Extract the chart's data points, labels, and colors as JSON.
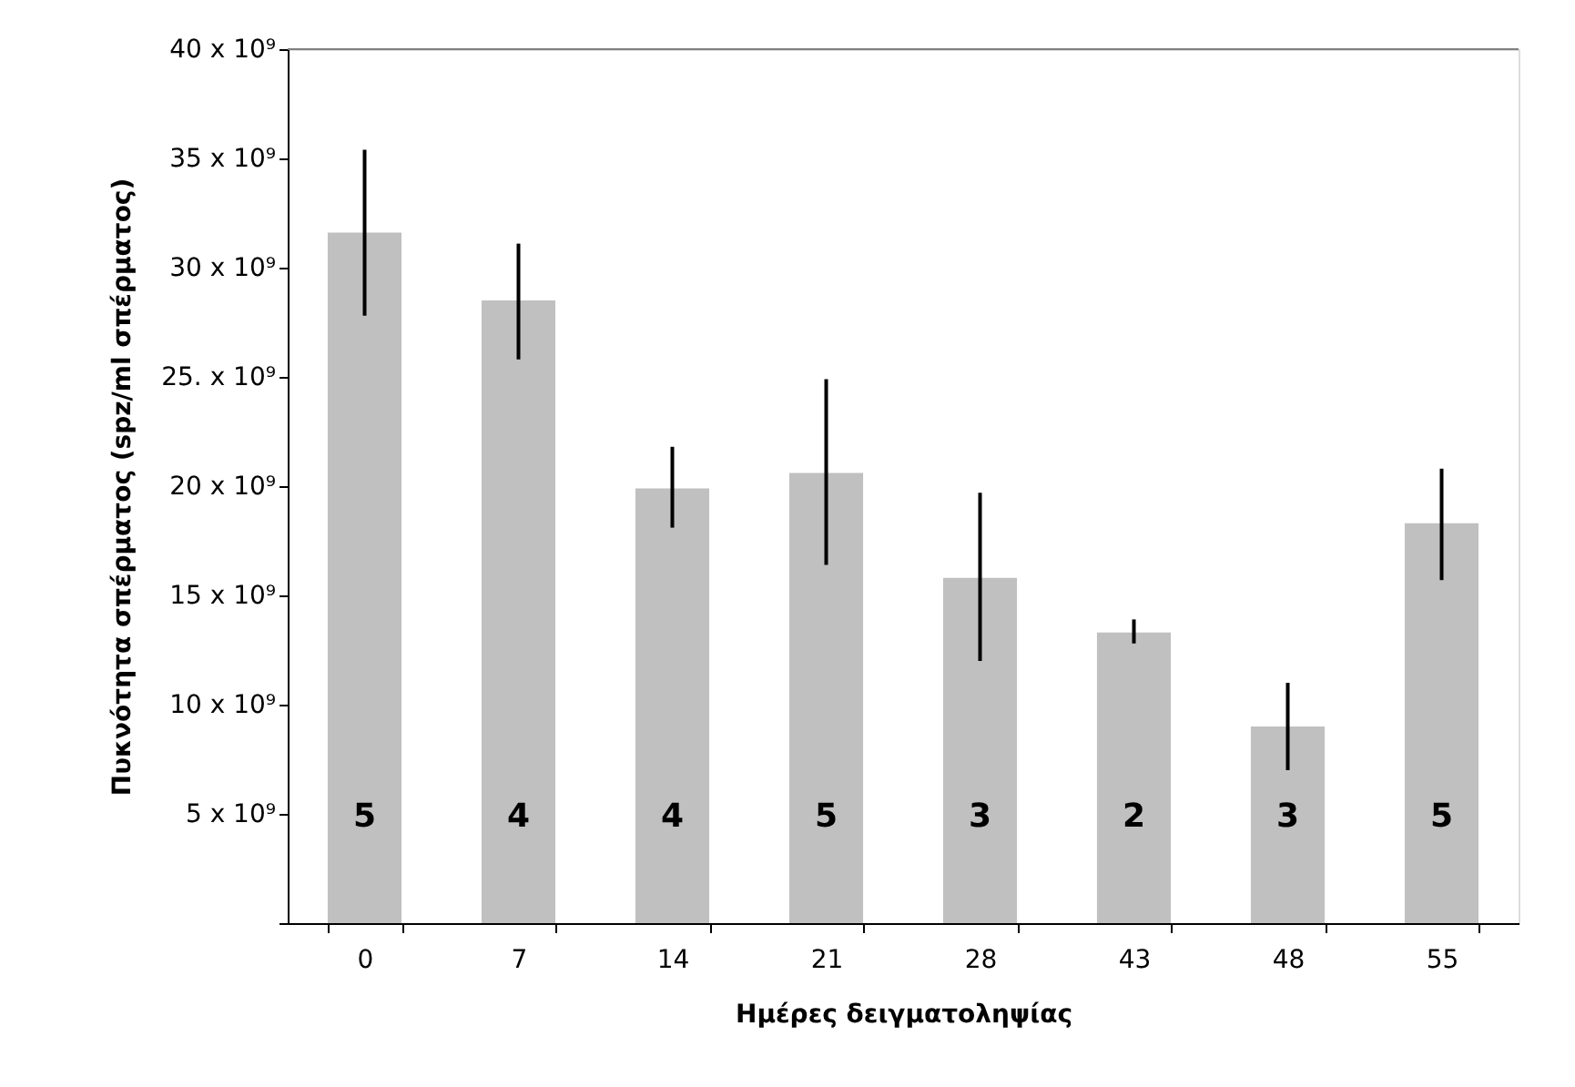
{
  "chart_data": {
    "type": "bar",
    "xlabel": "Ημέρες δειγματοληψίας",
    "ylabel": "Πυκνότητα σπέρματος (spz/ml σπέρματος)",
    "categories": [
      "0",
      "7",
      "14",
      "21",
      "28",
      "43",
      "48",
      "55"
    ],
    "values": [
      31600000000,
      28500000000,
      19900000000,
      20600000000,
      15800000000,
      13300000000,
      9000000000,
      18300000000
    ],
    "errors": [
      [
        27800000000,
        35400000000
      ],
      [
        25800000000,
        31100000000
      ],
      [
        18100000000,
        21800000000
      ],
      [
        16400000000,
        24900000000
      ],
      [
        12000000000,
        19700000000
      ],
      [
        12800000000,
        13900000000
      ],
      [
        7000000000,
        11000000000
      ],
      [
        15700000000,
        20800000000
      ]
    ],
    "color": "#c0c0c0",
    "ylim": [
      0,
      40000000000
    ],
    "yticks": [
      {
        "value": 0,
        "label": null
      },
      {
        "value": 5000000000,
        "label": "5 x 10⁹"
      },
      {
        "value": 10000000000,
        "label": "10 x 10⁹"
      },
      {
        "value": 15000000000,
        "label": "15 x 10⁹"
      },
      {
        "value": 20000000000,
        "label": "20 x 10⁹"
      },
      {
        "value": 25000000000,
        "label": "25. x 10⁹"
      },
      {
        "value": 30000000000,
        "label": "30 x 10⁹"
      },
      {
        "value": 35000000000,
        "label": "35 x 10⁹"
      },
      {
        "value": 40000000000,
        "label": "40 x 10⁹"
      }
    ],
    "annotations": [
      "5",
      "4",
      "4",
      "5",
      "3",
      "2",
      "3",
      "5"
    ],
    "grid": false
  }
}
